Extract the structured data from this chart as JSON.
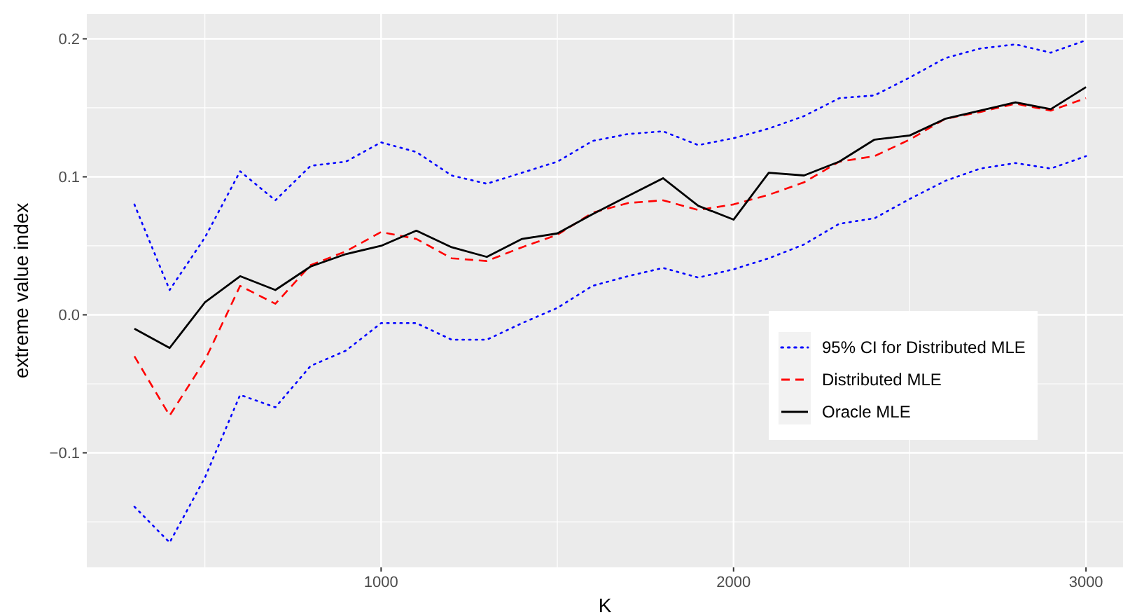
{
  "chart_data": {
    "type": "line",
    "xlabel": "K",
    "ylabel": "extreme value index",
    "x": [
      300,
      400,
      500,
      600,
      700,
      800,
      900,
      1000,
      1100,
      1200,
      1300,
      1400,
      1500,
      1600,
      1700,
      1800,
      1900,
      2000,
      2100,
      2200,
      2300,
      2400,
      2500,
      2600,
      2700,
      2800,
      2900,
      3000
    ],
    "series": [
      {
        "name": "95% CI for Distributed MLE",
        "color": "#0000ff",
        "line_style": "dotted",
        "values": [
          0.08,
          0.018,
          0.056,
          0.104,
          0.083,
          0.108,
          0.111,
          0.125,
          0.118,
          0.101,
          0.095,
          0.103,
          0.111,
          0.126,
          0.131,
          0.133,
          0.123,
          0.128,
          0.135,
          0.144,
          0.157,
          0.159,
          0.172,
          0.186,
          0.193,
          0.196,
          0.19,
          0.199
        ]
      },
      {
        "color": "#0000ff",
        "line_style": "dotted",
        "values": [
          -0.139,
          -0.165,
          -0.118,
          -0.058,
          -0.067,
          -0.037,
          -0.026,
          -0.006,
          -0.006,
          -0.018,
          -0.018,
          -0.006,
          0.005,
          0.021,
          0.028,
          0.034,
          0.027,
          0.033,
          0.041,
          0.051,
          0.066,
          0.07,
          0.084,
          0.097,
          0.106,
          0.11,
          0.106,
          0.115
        ]
      },
      {
        "name": "Distributed MLE",
        "color": "#ff0000",
        "line_style": "dashed",
        "values": [
          -0.03,
          -0.073,
          -0.033,
          0.021,
          0.008,
          0.036,
          0.046,
          0.06,
          0.055,
          0.041,
          0.039,
          0.049,
          0.058,
          0.074,
          0.081,
          0.083,
          0.076,
          0.08,
          0.087,
          0.096,
          0.111,
          0.115,
          0.127,
          0.142,
          0.147,
          0.153,
          0.148,
          0.157
        ]
      },
      {
        "name": "Oracle MLE",
        "color": "#000000",
        "line_style": "solid",
        "values": [
          -0.01,
          -0.024,
          0.009,
          0.028,
          0.018,
          0.035,
          0.044,
          0.05,
          0.061,
          0.049,
          0.042,
          0.055,
          0.059,
          0.073,
          0.086,
          0.099,
          0.079,
          0.069,
          0.103,
          0.101,
          0.111,
          0.127,
          0.13,
          0.142,
          0.148,
          0.154,
          0.149,
          0.165
        ]
      }
    ],
    "xlim": [
      165,
      3105
    ],
    "xticks": [
      1000,
      2000,
      3000
    ],
    "ylim": [
      -0.183,
      0.218
    ],
    "yticks": [
      {
        "value": -0.1,
        "label": "−0.1"
      },
      {
        "value": 0,
        "label": "0.0"
      },
      {
        "value": 0.1,
        "label": "0.1"
      },
      {
        "value": 0.2,
        "label": "0.2"
      }
    ],
    "grid": true,
    "legend": "right"
  }
}
